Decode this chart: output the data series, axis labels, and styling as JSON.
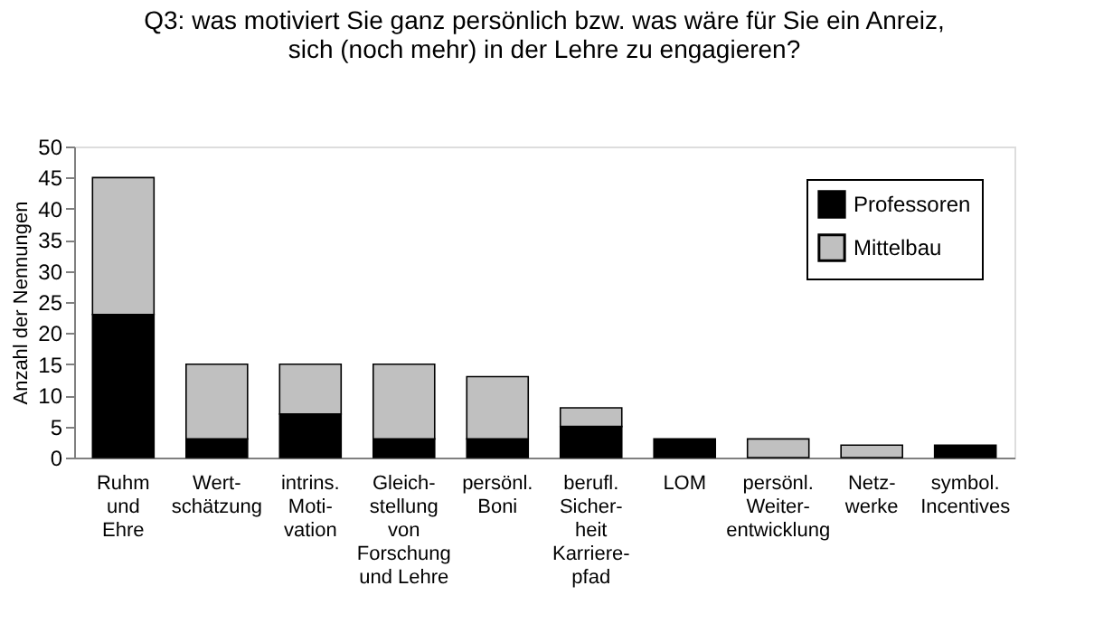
{
  "chart_data": {
    "type": "bar",
    "title": [
      "Q3: was motiviert Sie ganz persönlich bzw. was wäre für Sie ein Anreiz,",
      "sich (noch mehr) in der Lehre zu engagieren?"
    ],
    "ylabel": "Anzahl der Nennungen",
    "categories": [
      "Ruhm\nund\nEhre",
      "Wert-\nschätzung",
      "intrins.\nMoti-\nvation",
      "Gleich-\nstellung\nvon\nForschung\nund Lehre",
      "persönl.\nBoni",
      "berufl.\nSicher-\nheit\nKarriere-\npfad",
      "LOM",
      "persönl.\nWeiter-\nentwicklung",
      "Netz-\nwerke",
      "symbol.\nIncentives"
    ],
    "stacked": true,
    "series": [
      {
        "name": "Professoren",
        "color": "#000000",
        "values": [
          23,
          3,
          7,
          3,
          3,
          5,
          3,
          0,
          0,
          2
        ]
      },
      {
        "name": "Mittelbau",
        "color": "#c0c0c0",
        "values": [
          22,
          12,
          8,
          12,
          10,
          3,
          0,
          3,
          2,
          0
        ]
      }
    ],
    "ylim": [
      0,
      50
    ],
    "yticks": [
      0,
      5,
      10,
      15,
      20,
      25,
      30,
      35,
      40,
      45,
      50
    ],
    "grid": false,
    "legend": "top right"
  }
}
